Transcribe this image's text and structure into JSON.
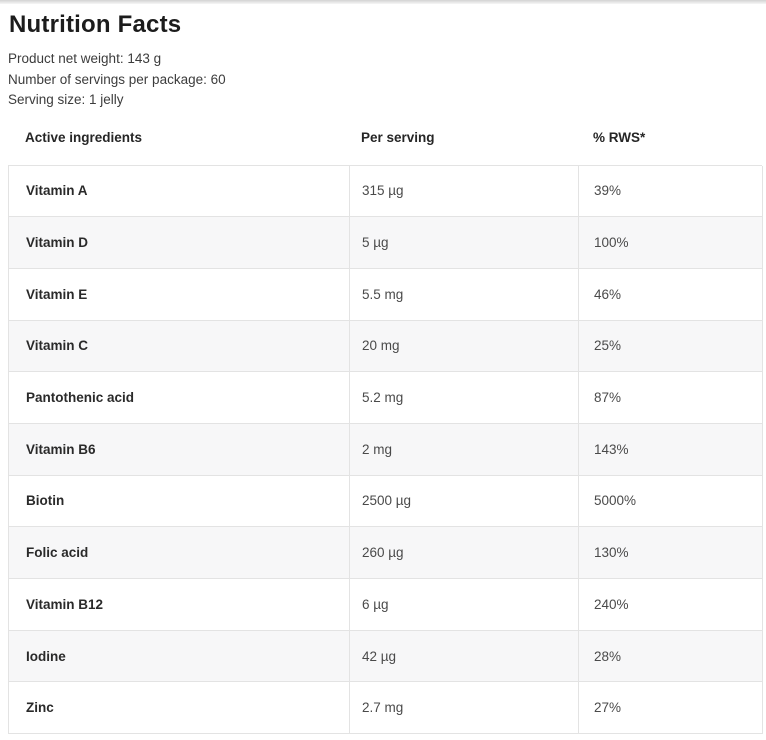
{
  "page": {
    "title": "Nutrition Facts",
    "meta_lines": [
      "Product net weight: 143 g",
      "Number of servings per package: 60",
      "Serving size: 1 jelly"
    ]
  },
  "table": {
    "columns": [
      "Active ingredients",
      "Per serving",
      "% RWS*"
    ],
    "rows": [
      {
        "ingredient": "Vitamin A",
        "per_serving": "315 µg",
        "rws": "39%"
      },
      {
        "ingredient": "Vitamin D",
        "per_serving": "5 µg",
        "rws": "100%"
      },
      {
        "ingredient": "Vitamin E",
        "per_serving": "5.5 mg",
        "rws": "46%"
      },
      {
        "ingredient": "Vitamin C",
        "per_serving": "20 mg",
        "rws": "25%"
      },
      {
        "ingredient": "Pantothenic acid",
        "per_serving": "5.2 mg",
        "rws": "87%"
      },
      {
        "ingredient": "Vitamin B6",
        "per_serving": "2 mg",
        "rws": "143%"
      },
      {
        "ingredient": "Biotin",
        "per_serving": "2500 µg",
        "rws": "5000%"
      },
      {
        "ingredient": "Folic acid",
        "per_serving": "260 µg",
        "rws": "130%"
      },
      {
        "ingredient": "Vitamin B12",
        "per_serving": "6 µg",
        "rws": "240%"
      },
      {
        "ingredient": "Iodine",
        "per_serving": "42 µg",
        "rws": "28%"
      },
      {
        "ingredient": "Zinc",
        "per_serving": "2.7 mg",
        "rws": "27%"
      }
    ]
  },
  "colors": {
    "row_alt_background": "#f7f7f8",
    "table_border": "#e3e3e3",
    "heading_text": "#1c1c1c",
    "body_text": "#3c3c3c",
    "top_strip": "#d2d2d2"
  }
}
